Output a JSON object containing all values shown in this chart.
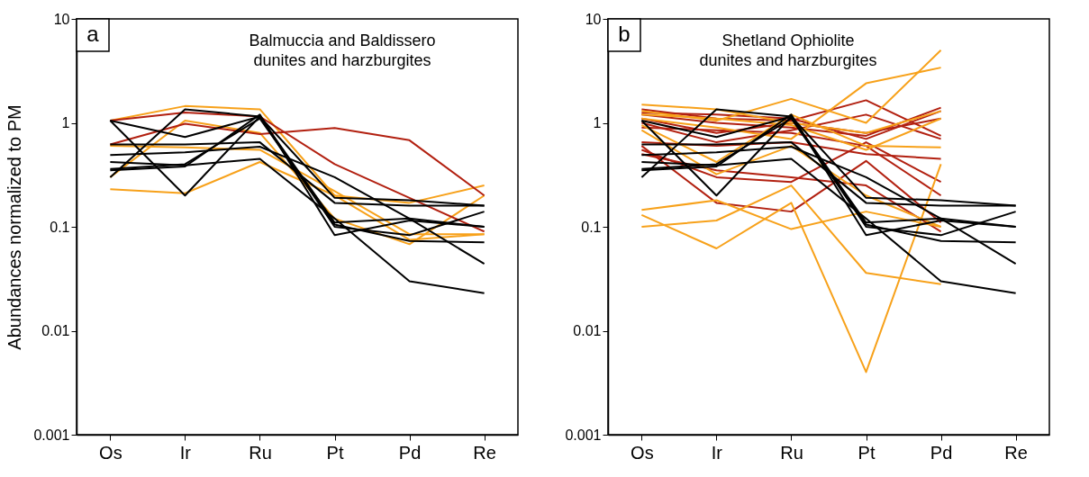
{
  "chart_data": [
    {
      "type": "line",
      "title": "Balmuccia and Baldissero\ndunites and harzburgites",
      "ylabel": "Abundances normalized to PM",
      "annotations": [
        "a"
      ],
      "log": true,
      "legend": false,
      "grid": false,
      "ylim": [
        0.001,
        10
      ],
      "yticks": [
        0.001,
        0.01,
        0.1,
        1,
        10
      ],
      "categories": [
        "Os",
        "Ir",
        "Ru",
        "Pt",
        "Pd",
        "Re"
      ],
      "series": [
        {
          "color": "#f7a11a",
          "values": [
            1.05,
            1.45,
            1.35,
            0.2,
            0.17,
            0.25
          ]
        },
        {
          "color": "#f7a11a",
          "values": [
            0.3,
            1.05,
            0.8,
            0.12,
            0.068,
            0.2
          ]
        },
        {
          "color": "#f7a11a",
          "values": [
            0.23,
            0.21,
            0.42,
            0.2,
            0.075,
            0.085
          ]
        },
        {
          "color": "#f7a11a",
          "values": [
            0.6,
            0.58,
            0.55,
            0.22,
            0.085,
            0.085
          ]
        },
        {
          "color": "#b22010",
          "values": [
            0.62,
            0.98,
            0.78,
            0.89,
            0.68,
            0.2
          ]
        },
        {
          "color": "#b22010",
          "values": [
            1.05,
            1.26,
            1.15,
            0.4,
            0.19,
            0.09
          ]
        },
        {
          "color": "#000000",
          "values": [
            1.05,
            0.73,
            1.15,
            0.19,
            0.18,
            0.16
          ]
        },
        {
          "color": "#000000",
          "values": [
            1.05,
            0.2,
            1.15,
            0.11,
            0.12,
            0.1
          ]
        },
        {
          "color": "#000000",
          "values": [
            0.3,
            1.35,
            1.15,
            0.1,
            0.083,
            0.14
          ]
        },
        {
          "color": "#000000",
          "values": [
            0.62,
            0.62,
            0.65,
            0.17,
            0.16,
            0.16
          ]
        },
        {
          "color": "#000000",
          "values": [
            0.49,
            0.52,
            0.59,
            0.3,
            0.12,
            0.044
          ]
        },
        {
          "color": "#000000",
          "values": [
            0.42,
            0.39,
            0.45,
            0.12,
            0.03,
            0.023
          ]
        },
        {
          "color": "#000000",
          "values": [
            0.35,
            0.38,
            1.2,
            0.083,
            0.115,
            0.1
          ]
        },
        {
          "color": "#000000",
          "values": [
            0.36,
            0.4,
            1.1,
            0.105,
            0.073,
            0.071
          ]
        }
      ]
    },
    {
      "type": "line",
      "title": "Shetland Ophiolite\ndunites and harzburgites",
      "annotations": [
        "b"
      ],
      "log": true,
      "legend": false,
      "grid": false,
      "ylim": [
        0.001,
        10
      ],
      "yticks": [
        0.001,
        0.01,
        0.1,
        1,
        10
      ],
      "categories": [
        "Os",
        "Ir",
        "Ru",
        "Pt",
        "Pd",
        "Re"
      ],
      "series": [
        {
          "color": "#b22010",
          "values": [
            1.35,
            1.1,
            1.05,
            1.65,
            0.75,
            null
          ]
        },
        {
          "color": "#b22010",
          "values": [
            1.2,
            1.0,
            0.9,
            0.75,
            1.4,
            null
          ]
        },
        {
          "color": "#b22010",
          "values": [
            1.1,
            0.8,
            1.0,
            0.8,
            1.1,
            null
          ]
        },
        {
          "color": "#b22010",
          "values": [
            1.0,
            0.65,
            0.85,
            1.2,
            0.7,
            null
          ]
        },
        {
          "color": "#b22010",
          "values": [
            0.65,
            0.6,
            0.65,
            0.5,
            0.45,
            null
          ]
        },
        {
          "color": "#b22010",
          "values": [
            0.55,
            0.3,
            0.27,
            0.65,
            0.27,
            null
          ]
        },
        {
          "color": "#b22010",
          "values": [
            0.6,
            0.17,
            0.14,
            0.43,
            0.11,
            null
          ]
        },
        {
          "color": "#b22010",
          "values": [
            0.5,
            0.35,
            0.3,
            0.25,
            0.09,
            null
          ]
        },
        {
          "color": "#b22010",
          "values": [
            0.9,
            0.85,
            0.8,
            0.6,
            0.2,
            null
          ]
        },
        {
          "color": "#b22010",
          "values": [
            1.25,
            1.2,
            1.1,
            0.7,
            1.3,
            null
          ]
        },
        {
          "color": "#f7a11a",
          "values": [
            1.5,
            1.35,
            1.0,
            0.8,
            1.3,
            null
          ]
        },
        {
          "color": "#f7a11a",
          "values": [
            1.3,
            1.05,
            1.7,
            1.0,
            5.0,
            null
          ]
        },
        {
          "color": "#f7a11a",
          "values": [
            1.1,
            0.9,
            0.7,
            2.4,
            3.4,
            null
          ]
        },
        {
          "color": "#f7a11a",
          "values": [
            0.95,
            0.42,
            1.2,
            0.6,
            0.58,
            null
          ]
        },
        {
          "color": "#f7a11a",
          "values": [
            0.1,
            0.115,
            0.25,
            0.036,
            0.028,
            null
          ]
        },
        {
          "color": "#f7a11a",
          "values": [
            0.13,
            0.062,
            0.17,
            0.004,
            0.4,
            null
          ]
        },
        {
          "color": "#f7a11a",
          "values": [
            0.145,
            0.18,
            0.095,
            0.14,
            0.1,
            null
          ]
        },
        {
          "color": "#f7a11a",
          "values": [
            0.85,
            0.32,
            0.6,
            0.2,
            0.1,
            null
          ]
        },
        {
          "color": "#f7a11a",
          "values": [
            1.2,
            1.1,
            0.95,
            0.55,
            1.1,
            null
          ]
        },
        {
          "color": "#000000",
          "values": [
            1.05,
            0.73,
            1.15,
            0.19,
            0.18,
            0.16
          ]
        },
        {
          "color": "#000000",
          "values": [
            1.05,
            0.2,
            1.15,
            0.11,
            0.12,
            0.1
          ]
        },
        {
          "color": "#000000",
          "values": [
            0.3,
            1.35,
            1.15,
            0.1,
            0.083,
            0.14
          ]
        },
        {
          "color": "#000000",
          "values": [
            0.62,
            0.62,
            0.65,
            0.17,
            0.16,
            0.16
          ]
        },
        {
          "color": "#000000",
          "values": [
            0.49,
            0.52,
            0.59,
            0.3,
            0.12,
            0.044
          ]
        },
        {
          "color": "#000000",
          "values": [
            0.42,
            0.39,
            0.45,
            0.12,
            0.03,
            0.023
          ]
        },
        {
          "color": "#000000",
          "values": [
            0.35,
            0.38,
            1.2,
            0.083,
            0.115,
            0.1
          ]
        },
        {
          "color": "#000000",
          "values": [
            0.36,
            0.4,
            1.1,
            0.105,
            0.073,
            0.071
          ]
        }
      ]
    }
  ]
}
